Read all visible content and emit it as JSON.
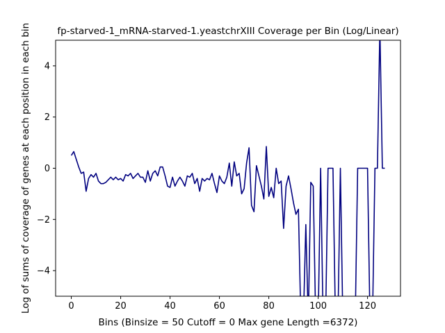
{
  "chart_data": {
    "type": "line",
    "title": "fp-starved-1_mRNA-starved-1.yeastchrXIII Coverage per Bin (Log/Linear)",
    "xlabel": "Bins  (Binsize = 50 Cutoff = 0 Max gene Length =6372)",
    "ylabel": "Log of sums of coverage of genes at each position in each bin",
    "xlim": [
      -6.35,
      133.35
    ],
    "ylim": [
      -5,
      5
    ],
    "xticks": [
      0,
      20,
      40,
      60,
      80,
      100,
      120
    ],
    "yticks": [
      -4,
      -2,
      0,
      2,
      4
    ],
    "grid": false,
    "line_color": "#00007f",
    "series": [
      {
        "x": [
          0,
          1,
          2,
          3,
          4,
          5,
          6,
          7,
          8,
          9,
          10,
          11,
          12,
          13,
          14,
          15,
          16,
          17,
          18,
          19,
          20,
          21,
          22,
          23,
          24,
          25,
          26,
          27,
          28,
          29,
          30,
          31,
          32,
          33,
          34,
          35,
          36,
          37,
          38,
          39,
          40,
          41,
          42,
          43,
          44,
          45,
          46,
          47,
          48,
          49,
          50,
          51,
          52,
          53,
          54,
          55,
          56,
          57,
          58,
          59,
          60,
          61,
          62,
          63,
          64,
          65,
          66,
          67,
          68,
          69,
          70,
          71,
          72,
          73,
          74,
          75,
          76,
          77,
          78,
          79,
          80,
          81,
          82,
          83,
          84,
          85,
          86,
          87,
          88,
          89,
          90,
          91,
          92,
          93,
          94,
          95,
          96,
          97,
          98,
          99,
          100,
          101,
          102,
          103,
          104,
          105,
          106,
          107,
          108,
          109,
          110,
          111,
          112,
          113,
          114,
          115,
          116,
          117,
          118,
          119,
          120,
          121,
          122,
          123,
          124,
          125,
          126,
          127
        ],
        "y": [
          0.5,
          0.65,
          0.35,
          0.05,
          -0.2,
          -0.15,
          -0.9,
          -0.4,
          -0.25,
          -0.35,
          -0.2,
          -0.5,
          -0.6,
          -0.6,
          -0.55,
          -0.45,
          -0.35,
          -0.45,
          -0.35,
          -0.45,
          -0.4,
          -0.5,
          -0.25,
          -0.3,
          -0.2,
          -0.4,
          -0.3,
          -0.2,
          -0.35,
          -0.35,
          -0.55,
          -0.1,
          -0.5,
          -0.2,
          -0.1,
          -0.3,
          0.05,
          0.05,
          -0.3,
          -0.7,
          -0.75,
          -0.35,
          -0.7,
          -0.5,
          -0.35,
          -0.5,
          -0.7,
          -0.3,
          -0.35,
          -0.2,
          -0.6,
          -0.4,
          -0.9,
          -0.4,
          -0.5,
          -0.4,
          -0.45,
          -0.2,
          -0.6,
          -0.95,
          -0.3,
          -0.5,
          -0.6,
          -0.35,
          0.2,
          -0.7,
          0.25,
          -0.3,
          -0.2,
          -1.0,
          -0.8,
          0.2,
          0.8,
          -1.45,
          -1.7,
          0.1,
          -0.3,
          -0.7,
          -1.2,
          0.85,
          -1.1,
          -0.75,
          -1.15,
          0.0,
          -0.6,
          -0.5,
          -2.35,
          -0.7,
          -0.3,
          -0.8,
          -1.35,
          -1.8,
          -1.6,
          -6,
          -6,
          -2.2,
          -6,
          -0.55,
          -0.7,
          -6,
          -6,
          0.0,
          -6,
          -6,
          0.0,
          0.0,
          0.0,
          -6,
          -6,
          0.0,
          -6,
          -6,
          -6,
          -6,
          -6,
          -6,
          0.0,
          0.0,
          0.0,
          0.0,
          0.0,
          -6,
          -6,
          0.0,
          0.0,
          5.5,
          0.0,
          0.0
        ]
      }
    ]
  }
}
